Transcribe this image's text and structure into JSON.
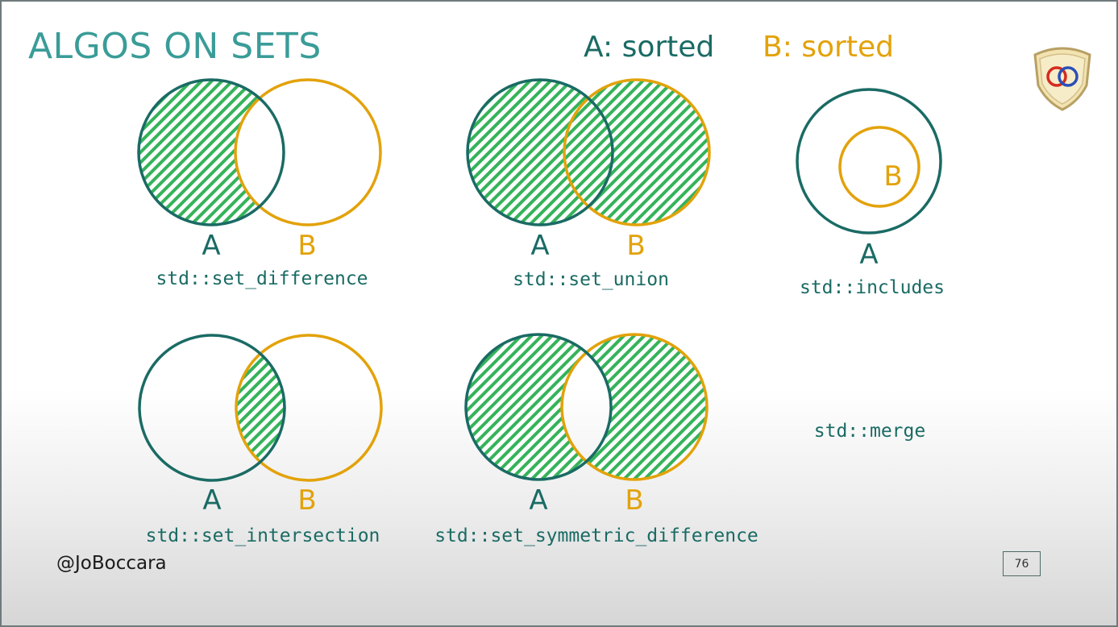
{
  "slide": {
    "title": "ALGOS ON SETS",
    "legend_a": "A: sorted",
    "legend_b": "B: sorted",
    "handle": "@JoBoccara",
    "page_number": "76"
  },
  "colors": {
    "title": "#3a9c98",
    "set_a": "#1a6b64",
    "set_b": "#e3a20a",
    "hatch": "#35b35a"
  },
  "diagrams": [
    {
      "caption": "std::set_difference",
      "label_a": "A",
      "label_b": "B"
    },
    {
      "caption": "std::set_union",
      "label_a": "A",
      "label_b": "B"
    },
    {
      "caption": "std::includes",
      "label_a": "A",
      "label_b": "B"
    },
    {
      "caption": "std::set_intersection",
      "label_a": "A",
      "label_b": "B"
    },
    {
      "caption": "std::set_symmetric_difference",
      "label_a": "A",
      "label_b": "B"
    },
    {
      "caption": "std::merge"
    }
  ],
  "logo": {
    "icon": "interlocking-rings-shield-icon"
  }
}
